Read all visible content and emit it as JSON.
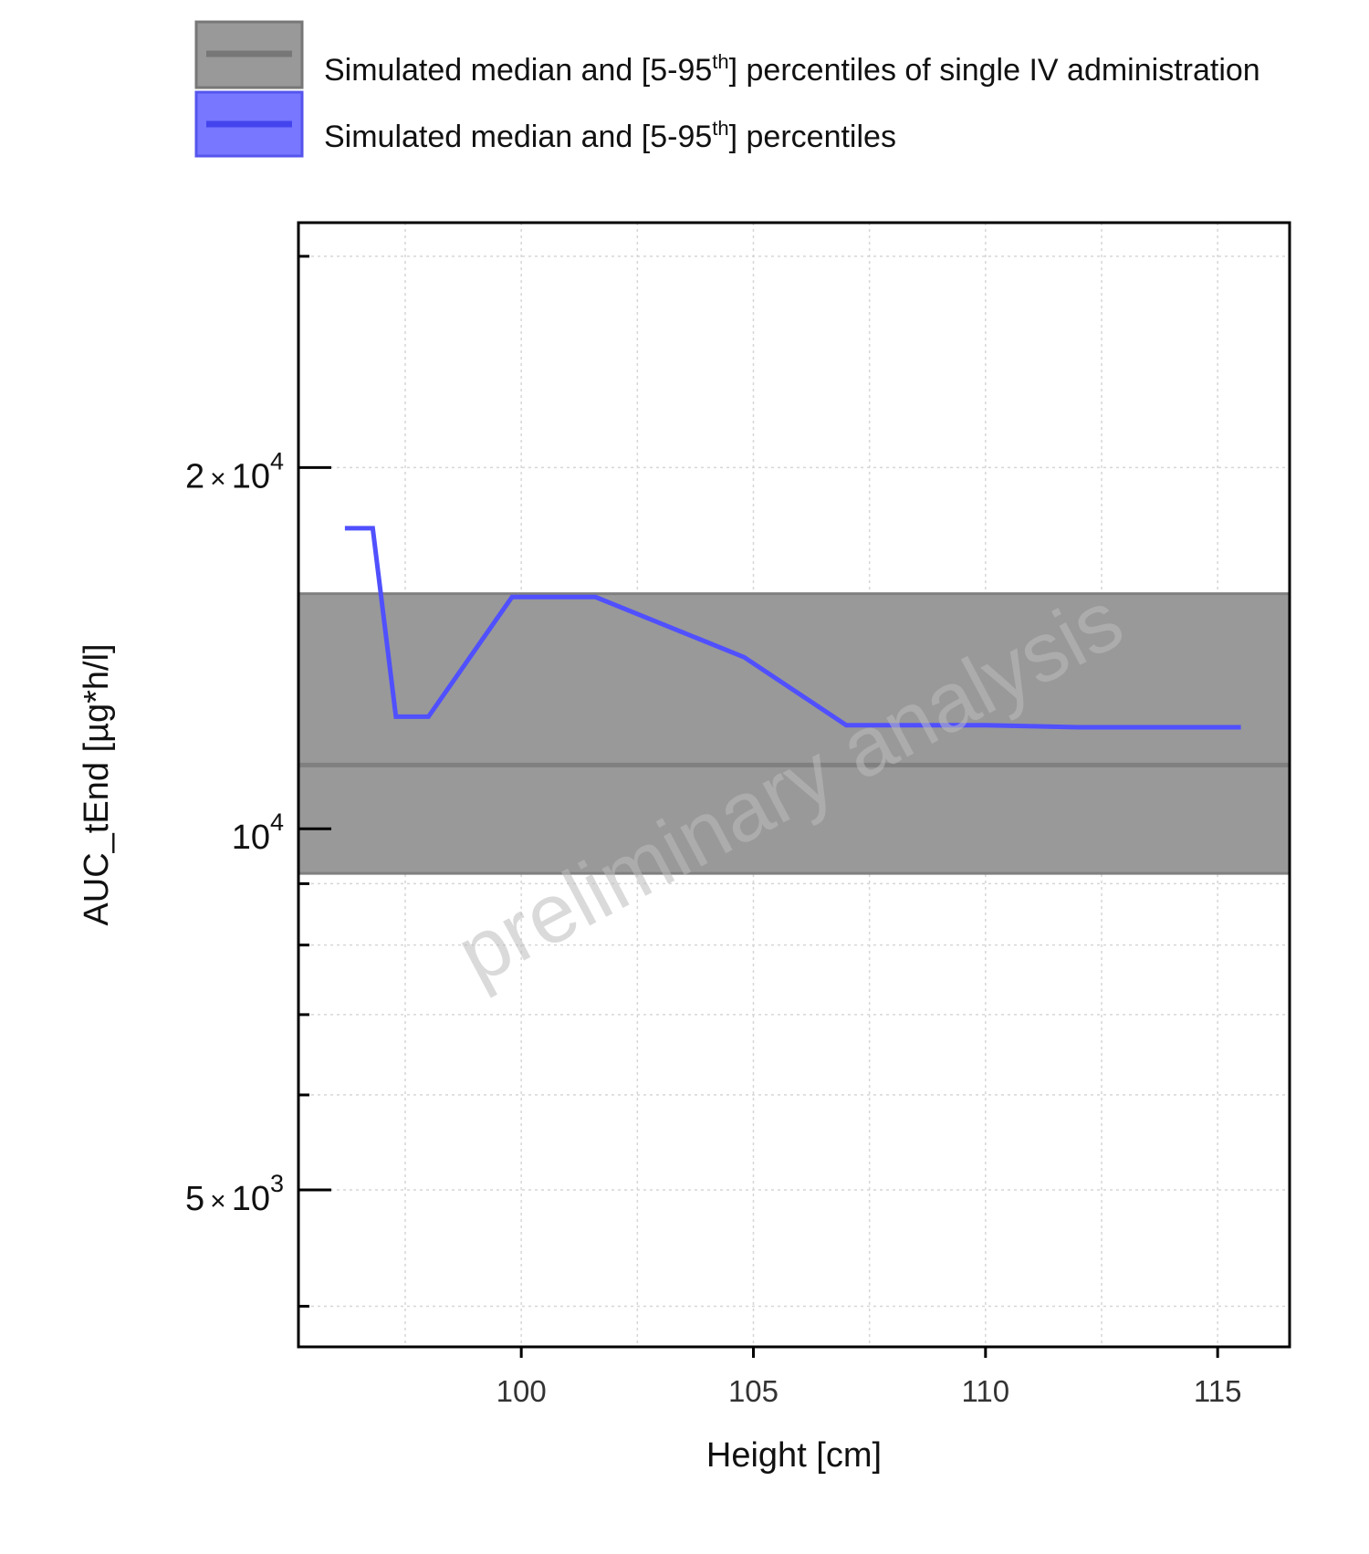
{
  "chart_data": {
    "type": "line",
    "title": "",
    "xlabel": "Height [cm]",
    "ylabel": "AUC_tEnd [µg*h/l]",
    "y_scale": "log",
    "xlim": [
      95.2,
      116.55
    ],
    "ylim": [
      3700,
      32000
    ],
    "grid": true,
    "watermark": "preliminary analysis",
    "x_ticks": [
      {
        "value": 100,
        "label": "100"
      },
      {
        "value": 105,
        "label": "105"
      },
      {
        "value": 110,
        "label": "110"
      },
      {
        "value": 115,
        "label": "115"
      }
    ],
    "y_major_ticks": [
      {
        "value": 5000,
        "mantissa": "5",
        "times": "×",
        "base": "10",
        "exponent": "3"
      },
      {
        "value": 10000,
        "mantissa": "",
        "times": "",
        "base": "10",
        "exponent": "4"
      },
      {
        "value": 20000,
        "mantissa": "2",
        "times": "×",
        "base": "10",
        "exponent": "4"
      }
    ],
    "y_minor_ticks": [
      4000,
      6000,
      7000,
      8000,
      9000,
      30000
    ],
    "legend": {
      "position": "top",
      "entries": [
        {
          "label_main": "Simulated median and [5-95",
          "label_sup": "th",
          "label_end": "] percentiles of single IV administration",
          "fill": "#999999",
          "line": "#777777"
        },
        {
          "label_main": "Simulated median and [5-95",
          "label_sup": "th",
          "label_end": "] percentiles",
          "fill": "#7777ff",
          "line": "#4444ee"
        }
      ]
    },
    "series": [
      {
        "name": "Simulated median and [5-95th] percentiles of single IV administration",
        "kind": "band",
        "median": 11300,
        "lower": 9180,
        "upper": 15700,
        "color": "#808080"
      },
      {
        "name": "Simulated median and [5-95th] percentiles",
        "kind": "line",
        "color": "#5050ff",
        "x": [
          96.2,
          96.8,
          97.3,
          98.0,
          99.8,
          101.6,
          104.8,
          107.0,
          110.0,
          112.0,
          115.5
        ],
        "y": [
          17800,
          17800,
          12400,
          12400,
          15600,
          15600,
          13900,
          12200,
          12200,
          12150,
          12150
        ]
      }
    ]
  }
}
